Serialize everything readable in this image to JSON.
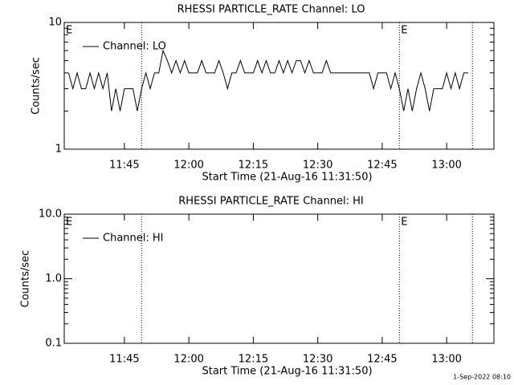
{
  "chart_data": [
    {
      "type": "line",
      "title": "RHESSI PARTICLE_RATE Channel: LO",
      "xlabel": "Start Time (21-Aug-16 11:31:50)",
      "ylabel": "Counts/sec",
      "log_y": true,
      "legend": "upper left",
      "xlim": [
        "11:31",
        "13:11"
      ],
      "xticks": [
        "11:45",
        "12:00",
        "12:15",
        "12:30",
        "12:45",
        "13:00"
      ],
      "ylim": [
        1,
        10
      ],
      "yticks": [
        1,
        10
      ],
      "markers": [
        {
          "x": "11:31",
          "text": "E"
        },
        {
          "x": "11:49"
        },
        {
          "x": "12:49",
          "text": "E"
        },
        {
          "x": "13:06"
        }
      ],
      "x": [
        "11:32",
        "11:33",
        "11:34",
        "11:35",
        "11:36",
        "11:37",
        "11:38",
        "11:39",
        "11:40",
        "11:41",
        "11:42",
        "11:43",
        "11:44",
        "11:45",
        "11:46",
        "11:47",
        "11:48",
        "11:49",
        "11:50",
        "11:51",
        "11:52",
        "11:53",
        "11:54",
        "11:55",
        "11:56",
        "11:57",
        "11:58",
        "11:59",
        "12:00",
        "12:01",
        "12:02",
        "12:03",
        "12:04",
        "12:05",
        "12:06",
        "12:07",
        "12:08",
        "12:09",
        "12:10",
        "12:11",
        "12:12",
        "12:13",
        "12:14",
        "12:15",
        "12:16",
        "12:17",
        "12:18",
        "12:19",
        "12:20",
        "12:21",
        "12:22",
        "12:23",
        "12:24",
        "12:25",
        "12:26",
        "12:27",
        "12:28",
        "12:29",
        "12:30",
        "12:31",
        "12:32",
        "12:33",
        "12:34",
        "12:35",
        "12:36",
        "12:37",
        "12:38",
        "12:39",
        "12:40",
        "12:41",
        "12:42",
        "12:43",
        "12:44",
        "12:45",
        "12:46",
        "12:47",
        "12:48",
        "12:49",
        "12:50",
        "12:51",
        "12:52",
        "12:53",
        "12:54",
        "12:55",
        "12:56",
        "12:57",
        "12:58",
        "12:59",
        "13:00",
        "13:01",
        "13:02",
        "13:03",
        "13:04",
        "13:05"
      ],
      "series": [
        {
          "name": "Channel: LO",
          "color": "#000000",
          "values": [
            4,
            3,
            4,
            3,
            3,
            4,
            3,
            4,
            3,
            4,
            2,
            3,
            2,
            3,
            3,
            3,
            2,
            3,
            4,
            3,
            4,
            4,
            6,
            5,
            4,
            5,
            4,
            5,
            4,
            4,
            4,
            5,
            4,
            4,
            4,
            5,
            4,
            3,
            4,
            4,
            5,
            4,
            4,
            4,
            5,
            4,
            5,
            4,
            4,
            5,
            4,
            5,
            4,
            5,
            5,
            4,
            5,
            4,
            4,
            4,
            5,
            4,
            4,
            4,
            4,
            4,
            4,
            4,
            4,
            4,
            4,
            3,
            4,
            4,
            4,
            3,
            4,
            3,
            2,
            3,
            2,
            3,
            4,
            3,
            2,
            3,
            3,
            3,
            4,
            3,
            4,
            3,
            4,
            4
          ]
        }
      ]
    },
    {
      "type": "line",
      "title": "RHESSI PARTICLE_RATE Channel: HI",
      "xlabel": "Start Time (21-Aug-16 11:31:50)",
      "ylabel": "Counts/sec",
      "log_y": true,
      "legend": "upper left",
      "xlim": [
        "11:31",
        "13:11"
      ],
      "xticks": [
        "11:45",
        "12:00",
        "12:15",
        "12:30",
        "12:45",
        "13:00"
      ],
      "ylim": [
        0.1,
        10
      ],
      "yticks": [
        0.1,
        {
          "value": 1,
          "label": "1.0"
        },
        {
          "value": 10,
          "label": "10.0"
        }
      ],
      "markers": [
        {
          "x": "11:31",
          "text": "E"
        },
        {
          "x": "11:49"
        },
        {
          "x": "12:49",
          "text": "E"
        },
        {
          "x": "13:06"
        }
      ],
      "x": [],
      "series": [
        {
          "name": "Channel: HI",
          "color": "#000000",
          "values": []
        }
      ]
    }
  ],
  "footer": "1-Sep-2022 08:10"
}
